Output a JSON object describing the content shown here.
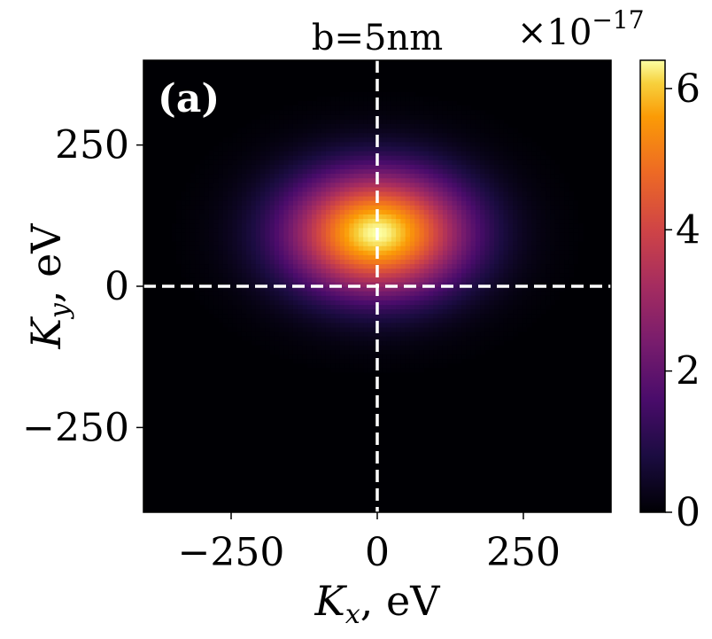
{
  "chart_data": {
    "type": "heatmap",
    "title": "b=5nm",
    "panel_label": "(a)",
    "xlabel": "K_x, eV",
    "ylabel": "K_y, eV",
    "xlabel_parts": {
      "sym": "K",
      "sub": "x",
      "unit": ", eV"
    },
    "ylabel_parts": {
      "sym": "K",
      "sub": "y",
      "unit": ", eV"
    },
    "xlim": [
      -400,
      400
    ],
    "ylim": [
      -400,
      400
    ],
    "xticks": [
      -250,
      0,
      250
    ],
    "yticks": [
      -250,
      0,
      250
    ],
    "xtick_labels": [
      "−250",
      "0",
      "250"
    ],
    "ytick_labels": [
      "−250",
      "0",
      "250"
    ],
    "colormap": "inferno",
    "colorbar": {
      "range": [
        0,
        6.4
      ],
      "ticks": [
        0,
        2,
        4,
        6
      ],
      "tick_labels": [
        "0",
        "2",
        "4",
        "6"
      ],
      "scale_label": "×10−17",
      "scale_base": "×10",
      "scale_exponent": "−17"
    },
    "peak": {
      "x": 0,
      "y": 95,
      "value": 6.4,
      "sigma_x": 105,
      "sigma_y": 75
    },
    "reference_lines": [
      {
        "axis": "x",
        "value": 0,
        "style": "dashed",
        "color": "#ffffff"
      },
      {
        "axis": "y",
        "value": 0,
        "style": "dashed",
        "color": "#ffffff"
      }
    ],
    "grid": false
  }
}
